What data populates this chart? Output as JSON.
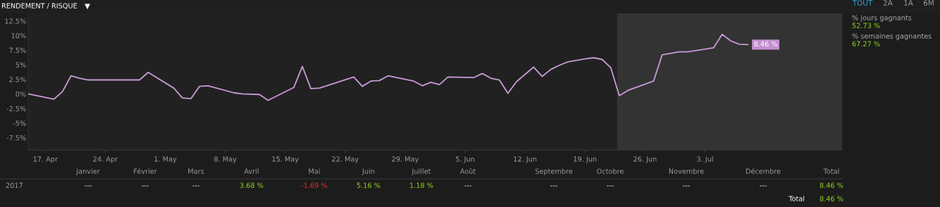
{
  "chart_data": {
    "type": "line",
    "title": "RENDEMENT / RISQUE",
    "x": [
      "2017-04-15",
      "2017-04-18",
      "2017-04-19",
      "2017-04-20",
      "2017-04-21",
      "2017-04-22",
      "2017-04-28",
      "2017-04-29",
      "2017-05-02",
      "2017-05-03",
      "2017-05-04",
      "2017-05-05",
      "2017-05-06",
      "2017-05-09",
      "2017-05-10",
      "2017-05-12",
      "2017-05-13",
      "2017-05-16",
      "2017-05-17",
      "2017-05-18",
      "2017-05-19",
      "2017-05-23",
      "2017-05-24",
      "2017-05-25",
      "2017-05-26",
      "2017-05-27",
      "2017-05-30",
      "2017-05-31",
      "2017-06-01",
      "2017-06-02",
      "2017-06-03",
      "2017-06-06",
      "2017-06-07",
      "2017-06-08",
      "2017-06-09",
      "2017-06-10",
      "2017-06-11",
      "2017-06-13",
      "2017-06-14",
      "2017-06-15",
      "2017-06-16",
      "2017-06-17",
      "2017-06-19",
      "2017-06-20",
      "2017-06-21",
      "2017-06-22",
      "2017-06-23",
      "2017-06-24",
      "2017-06-27",
      "2017-06-28",
      "2017-06-30",
      "2017-07-01",
      "2017-07-04",
      "2017-07-05",
      "2017-07-06",
      "2017-07-07",
      "2017-07-08"
    ],
    "series": [
      {
        "color": "#c89bd6",
        "values": [
          0,
          -0.9,
          0.4,
          3.1,
          2.7,
          2.4,
          2.4,
          3.7,
          1.0,
          -0.7,
          -0.8,
          1.3,
          1.4,
          0.2,
          0,
          -0.1,
          -1.1,
          1.1,
          4.7,
          0.9,
          1.0,
          2.9,
          1.3,
          2.2,
          2.3,
          3.1,
          2.2,
          1.4,
          2.0,
          1.6,
          2.9,
          2.8,
          3.5,
          2.7,
          2.4,
          0.1,
          2.1,
          4.6,
          3.0,
          4.2,
          4.9,
          5.5,
          6.0,
          6.2,
          5.9,
          4.5,
          -0.3,
          0.6,
          2.2,
          6.7,
          7.2,
          7.2,
          7.9,
          10.2,
          9.1,
          8.5,
          8.46
        ]
      }
    ],
    "xlim": [
      "2017-04-15",
      "2017-07-19"
    ],
    "xticks": [
      {
        "value": "2017-04-17",
        "label": "17. Apr"
      },
      {
        "value": "2017-04-24",
        "label": "24. Apr"
      },
      {
        "value": "2017-05-01",
        "label": "1. May"
      },
      {
        "value": "2017-05-08",
        "label": "8. May"
      },
      {
        "value": "2017-05-15",
        "label": "15. May"
      },
      {
        "value": "2017-05-22",
        "label": "22. May"
      },
      {
        "value": "2017-05-29",
        "label": "29. May"
      },
      {
        "value": "2017-06-05",
        "label": "5. Jun"
      },
      {
        "value": "2017-06-12",
        "label": "12. Jun"
      },
      {
        "value": "2017-06-19",
        "label": "19. Jun"
      },
      {
        "value": "2017-06-26",
        "label": "26. Jun"
      },
      {
        "value": "2017-07-03",
        "label": "3. Jul"
      }
    ],
    "ylim": [
      -9.6,
      13.8
    ],
    "yticks": [
      {
        "value": -7.5,
        "label": "-7.5%"
      },
      {
        "value": -5,
        "label": "-5%"
      },
      {
        "value": -2.5,
        "label": "-2.5%"
      },
      {
        "value": 0,
        "label": "0%"
      },
      {
        "value": 2.5,
        "label": "2.5%"
      },
      {
        "value": 5,
        "label": "5%"
      },
      {
        "value": 7.5,
        "label": "7.5%"
      },
      {
        "value": 10,
        "label": "10%"
      },
      {
        "value": 12.5,
        "label": "12.5%"
      }
    ],
    "bands": [
      {
        "axis": "x",
        "from": "2017-06-22T18:00",
        "to": "2017-07-19",
        "color": "#333333"
      }
    ],
    "grid": false,
    "legend": false,
    "marker": "none",
    "line_style": "solid",
    "annotations": [
      "TOUT",
      "2A",
      "1A",
      "6M",
      "% jours gagnants",
      "52.73 %",
      "% semaines gagnantes",
      "67.27 %",
      "Janvier",
      "Février",
      "Mars",
      "Avril",
      "Mai",
      "Juin",
      "Juillet",
      "Août",
      "Septembre",
      "Octobre",
      "Novembre",
      "Décembre",
      "Total",
      "2017",
      "---",
      "---",
      "---",
      "3.68 %",
      "-1.69 %",
      "5.16 %",
      "1.18 %",
      "---",
      "---",
      "---",
      "---",
      "---",
      "8.46 %",
      "Total",
      "8.46 %",
      {
        "text": "8.46 %",
        "x": "2017-07-08",
        "y": 8.46
      }
    ]
  }
}
